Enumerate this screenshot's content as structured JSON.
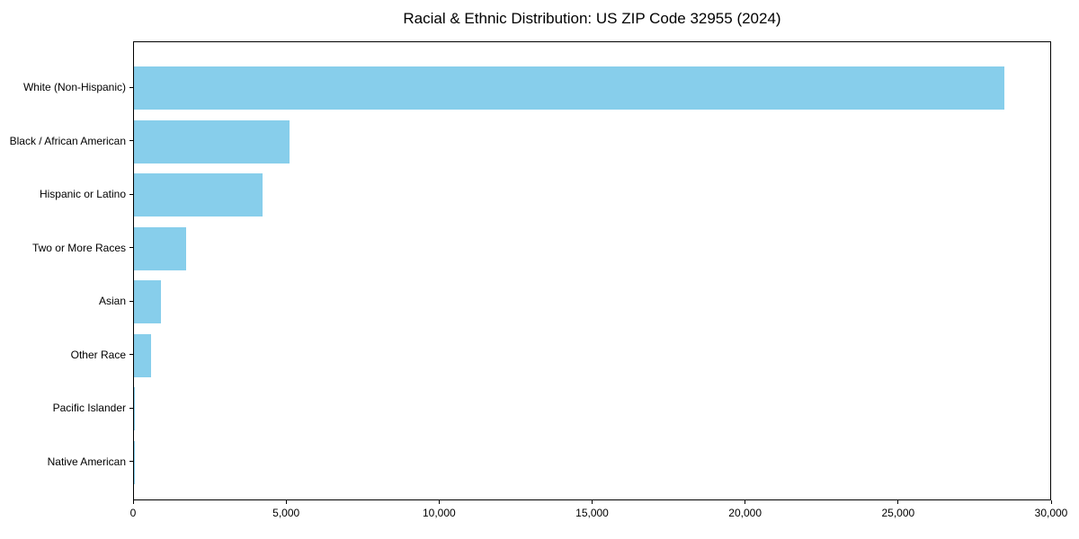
{
  "chart_data": {
    "type": "bar",
    "orientation": "horizontal",
    "title": "Racial & Ethnic Distribution: US ZIP Code 32955 (2024)",
    "categories": [
      "White (Non-Hispanic)",
      "Black / African American",
      "Hispanic or Latino",
      "Two or More Races",
      "Asian",
      "Other Race",
      "Pacific Islander",
      "Native American"
    ],
    "values": [
      28500,
      5100,
      4200,
      1700,
      880,
      550,
      20,
      10
    ],
    "bar_color": "#87CEEB",
    "xlabel": "",
    "ylabel": "",
    "xlim": [
      0,
      30000
    ],
    "x_ticks": [
      0,
      5000,
      10000,
      15000,
      20000,
      25000,
      30000
    ],
    "x_tick_labels": [
      "0",
      "5,000",
      "10,000",
      "15,000",
      "20,000",
      "25,000",
      "30,000"
    ],
    "grid": false,
    "legend": "none",
    "spine_color": "#000000",
    "text_color": "#000000"
  }
}
